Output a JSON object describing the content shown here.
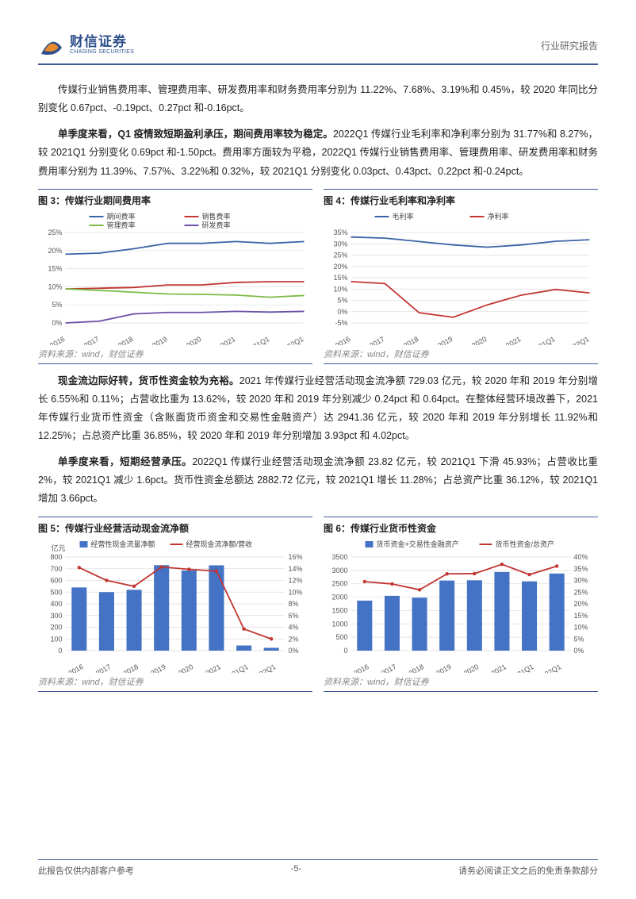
{
  "header": {
    "logo_cn": "财信证券",
    "logo_en": "CHASING SECURITIES",
    "doc_type": "行业研究报告"
  },
  "para1": "传媒行业销售费用率、管理费用率、研发费用率和财务费用率分别为 11.22%、7.68%、3.19%和 0.45%，较 2020 年同比分别变化 0.67pct、-0.19pct、0.27pct 和-0.16pct。",
  "para2_lead": "单季度来看，Q1 疫情致短期盈利承压，期间费用率较为稳定。",
  "para2_rest": "2022Q1 传媒行业毛利率和净利率分别为 31.77%和 8.27%，较 2021Q1 分别变化 0.69pct 和-1.50pct。费用率方面较为平稳，2022Q1 传媒行业销售费用率、管理费用率、研发费用率和财务费用率分别为 11.39%、7.57%、3.22%和 0.32%，较 2021Q1 分别变化 0.03pct、0.43pct、0.22pct 和-0.24pct。",
  "para3_lead": "现金流边际好转，货币性资金较为充裕。",
  "para3_rest": "2021 年传媒行业经营活动现金流净额 729.03 亿元，较 2020 年和 2019 年分别增长 6.55%和 0.11%；占营收比重为 13.62%，较 2020 年和 2019 年分别减少 0.24pct 和 0.64pct。在整体经营环境改善下，2021 年传媒行业货币性资金（含账面货币资金和交易性金融资产）达 2941.36 亿元，较 2020 年和 2019 年分别增长 11.92%和 12.25%；占总资产比重 36.85%，较 2020 年和 2019 年分别增加 3.93pct 和 4.02pct。",
  "para4_lead": "单季度来看，短期经营承压。",
  "para4_rest": "2022Q1 传媒行业经营活动现金流净额 23.82 亿元，较 2021Q1 下滑 45.93%；占营收比重 2%，较 2021Q1 减少 1.6pct。货币性资金总额达 2882.72 亿元，较 2021Q1 增长 11.28%；占总资产比重 36.12%，较 2021Q1 增加 3.66pct。",
  "chart3": {
    "title": "图 3：传媒行业期间费用率",
    "type": "line",
    "source": "资料来源：wind，财信证券",
    "categories": [
      "2016",
      "2017",
      "2018",
      "2019",
      "2020",
      "2021",
      "2021Q1",
      "2022Q1"
    ],
    "ylim": [
      0,
      25
    ],
    "ytick_step": 5,
    "ylabel_suffix": "%",
    "series": [
      {
        "name": "期间费率",
        "color": "#3b63a8",
        "values": [
          19.0,
          19.3,
          20.5,
          22.0,
          22.0,
          22.5,
          22.0,
          22.5
        ]
      },
      {
        "name": "销售费率",
        "color": "#c23531",
        "values": [
          9.4,
          9.6,
          9.8,
          10.5,
          10.5,
          11.2,
          11.4,
          11.4
        ]
      },
      {
        "name": "管理费率",
        "color": "#7bbb44",
        "values": [
          9.4,
          9.0,
          8.5,
          8.0,
          7.9,
          7.7,
          7.1,
          7.6
        ]
      },
      {
        "name": "研发费率",
        "color": "#6a4fa6",
        "values": [
          0.0,
          0.5,
          2.5,
          2.9,
          2.9,
          3.2,
          3.0,
          3.2
        ]
      }
    ],
    "grid_color": "#dddddd",
    "background_color": "#ffffff",
    "font_size": 9,
    "legend_font_size": 9
  },
  "chart4": {
    "title": "图 4：传媒行业毛利率和净利率",
    "type": "line",
    "source": "资料来源：wind，财信证券",
    "categories": [
      "2016",
      "2017",
      "2018",
      "2019",
      "2020",
      "2021",
      "2021Q1",
      "2022Q1"
    ],
    "ylim": [
      -5,
      35
    ],
    "ytick_step": 5,
    "ylabel_suffix": "%",
    "series": [
      {
        "name": "毛利率",
        "color": "#3b63a8",
        "values": [
          33.0,
          32.5,
          31.0,
          29.5,
          28.5,
          29.5,
          31.1,
          31.8
        ]
      },
      {
        "name": "净利率",
        "color": "#c23531",
        "values": [
          13.3,
          12.4,
          -0.5,
          -2.5,
          3.0,
          7.3,
          9.8,
          8.3
        ]
      }
    ],
    "grid_color": "#dddddd",
    "background_color": "#ffffff",
    "font_size": 9,
    "legend_font_size": 9
  },
  "chart5": {
    "title": "图 5：传媒行业经营活动现金流净额",
    "type": "bar-line",
    "source": "资料来源：wind，财信证券",
    "categories": [
      "2016",
      "2017",
      "2018",
      "2019",
      "2020",
      "2021",
      "2021Q1",
      "2022Q1"
    ],
    "y1": {
      "lim": [
        0,
        800
      ],
      "step": 100,
      "label": "亿元"
    },
    "y2": {
      "lim": [
        0,
        16
      ],
      "step": 2,
      "suffix": "%"
    },
    "bar": {
      "name": "经营性现金流量净额",
      "color": "#4472c4",
      "values": [
        540,
        500,
        520,
        730,
        685,
        729,
        44,
        24
      ]
    },
    "line": {
      "name": "经营现金流净额/营收",
      "color": "#c23531",
      "values": [
        14.2,
        12.0,
        11.0,
        14.3,
        13.9,
        13.6,
        3.7,
        2.0
      ]
    },
    "grid_color": "#dddddd",
    "background_color": "#ffffff",
    "font_size": 9,
    "legend_font_size": 9,
    "bar_width": 0.55
  },
  "chart6": {
    "title": "图 6：传媒行业货币性资金",
    "type": "bar-line",
    "source": "资料来源：wind，财信证券",
    "categories": [
      "2016",
      "2017",
      "2018",
      "2019",
      "2020",
      "2021",
      "2021Q1",
      "2022Q1"
    ],
    "y1": {
      "lim": [
        0,
        3500
      ],
      "step": 500,
      "label": ""
    },
    "y2": {
      "lim": [
        0,
        40
      ],
      "step": 5,
      "suffix": "%"
    },
    "bar": {
      "name": "货币资金+交易性金融资产",
      "color": "#4472c4",
      "values": [
        1870,
        2050,
        1980,
        2620,
        2630,
        2941,
        2590,
        2883
      ]
    },
    "line": {
      "name": "货币性资金/总资产",
      "color": "#c23531",
      "values": [
        29.5,
        28.5,
        26.0,
        32.8,
        32.9,
        36.9,
        32.5,
        36.1
      ]
    },
    "grid_color": "#dddddd",
    "background_color": "#ffffff",
    "font_size": 9,
    "legend_font_size": 9,
    "bar_width": 0.55
  },
  "footer": {
    "left": "此报告仅供内部客户参考",
    "center": "-5-",
    "right": "请务必阅读正文之后的免责条款部分"
  }
}
